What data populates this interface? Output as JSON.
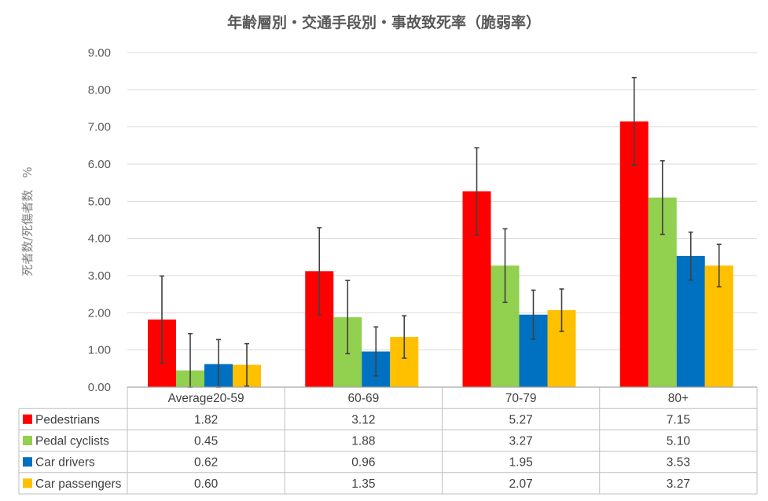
{
  "chart_data": {
    "type": "bar",
    "title": "年齢層別・交通手段別・事故致死率（脆弱率）",
    "ylabel": "死者数/死傷者数　%",
    "xlabel": "",
    "ylim": [
      0,
      9
    ],
    "yticks": [
      "0.00",
      "1.00",
      "2.00",
      "3.00",
      "4.00",
      "5.00",
      "6.00",
      "7.00",
      "8.00",
      "9.00"
    ],
    "grid": true,
    "legend": "data-table",
    "categories": [
      "Average20-59",
      "60-69",
      "70-79",
      "80+"
    ],
    "series": [
      {
        "name": "Pedestrians",
        "color": "#ff0000",
        "values": [
          1.82,
          3.12,
          5.27,
          7.15
        ],
        "labels": [
          "1.82",
          "3.12",
          "5.27",
          "7.15"
        ],
        "err_low": [
          0.65,
          1.95,
          4.1,
          5.97
        ],
        "err_high": [
          2.99,
          4.29,
          6.44,
          8.33
        ]
      },
      {
        "name": "Pedal cyclists",
        "color": "#92d050",
        "values": [
          0.45,
          1.88,
          3.27,
          5.1
        ],
        "labels": [
          "0.45",
          "1.88",
          "3.27",
          "5.10"
        ],
        "err_low": [
          0.0,
          0.9,
          2.28,
          4.11
        ],
        "err_high": [
          1.44,
          2.87,
          4.26,
          6.09
        ]
      },
      {
        "name": "Car drivers",
        "color": "#0070c0",
        "values": [
          0.62,
          0.96,
          1.95,
          3.53
        ],
        "labels": [
          "0.62",
          "0.96",
          "1.95",
          "3.53"
        ],
        "err_low": [
          0.0,
          0.3,
          1.29,
          2.88
        ],
        "err_high": [
          1.28,
          1.62,
          2.61,
          4.17
        ]
      },
      {
        "name": "Car passengers",
        "color": "#ffc000",
        "values": [
          0.6,
          1.35,
          2.07,
          3.27
        ],
        "labels": [
          "0.60",
          "1.35",
          "2.07",
          "3.27"
        ],
        "err_low": [
          0.03,
          0.78,
          1.5,
          2.7
        ],
        "err_high": [
          1.17,
          1.92,
          2.64,
          3.84
        ]
      }
    ]
  }
}
